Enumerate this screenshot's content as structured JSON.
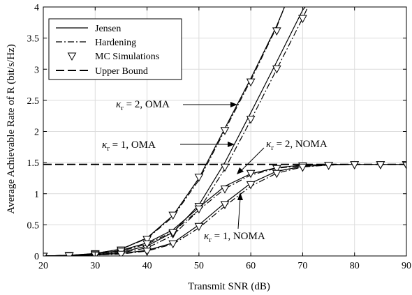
{
  "chart_data": {
    "type": "line",
    "xlabel": "Transmit SNR (dB)",
    "ylabel": "Average Achievable Rate of R (bit/s/Hz)",
    "xlim": [
      20,
      90
    ],
    "ylim": [
      0,
      4
    ],
    "xticks": [
      20,
      30,
      40,
      50,
      60,
      70,
      80,
      90
    ],
    "yticks": [
      0,
      0.5,
      1,
      1.5,
      2,
      2.5,
      3,
      3.5,
      4
    ],
    "grid": true,
    "legend": {
      "placement": "top-left",
      "entries": [
        {
          "label": "Jensen",
          "style": "solid"
        },
        {
          "label": "Hardening",
          "style": "dashdot"
        },
        {
          "label": "MC Simulations",
          "style": "triangle-marker"
        },
        {
          "label": "Upper Bound",
          "style": "dashed"
        }
      ]
    },
    "upper_bound": 1.47,
    "series": [
      {
        "kappa": "2",
        "scheme": "OMA",
        "jensen": [
          [
            20,
            0
          ],
          [
            25,
            0.01
          ],
          [
            30,
            0.04
          ],
          [
            35,
            0.11
          ],
          [
            40,
            0.29
          ],
          [
            45,
            0.65
          ],
          [
            50,
            1.25
          ],
          [
            55,
            2.05
          ],
          [
            60,
            2.85
          ],
          [
            65,
            3.7
          ],
          [
            66.5,
            4.0
          ]
        ],
        "hardening": [
          [
            20,
            0
          ],
          [
            25,
            0.01
          ],
          [
            30,
            0.04
          ],
          [
            35,
            0.11
          ],
          [
            40,
            0.28
          ],
          [
            45,
            0.63
          ],
          [
            50,
            1.22
          ],
          [
            55,
            2.02
          ],
          [
            60,
            2.82
          ],
          [
            65,
            3.68
          ],
          [
            66.5,
            4.0
          ]
        ],
        "mc": [
          [
            20,
            0
          ],
          [
            25,
            0.01
          ],
          [
            30,
            0.04
          ],
          [
            35,
            0.1
          ],
          [
            40,
            0.27
          ],
          [
            45,
            0.66
          ],
          [
            50,
            1.27
          ],
          [
            55,
            2.02
          ],
          [
            60,
            2.8
          ],
          [
            65,
            3.62
          ]
        ]
      },
      {
        "kappa": "1",
        "scheme": "OMA",
        "jensen": [
          [
            20,
            0
          ],
          [
            25,
            0.005
          ],
          [
            30,
            0.02
          ],
          [
            35,
            0.06
          ],
          [
            40,
            0.16
          ],
          [
            45,
            0.38
          ],
          [
            50,
            0.82
          ],
          [
            55,
            1.5
          ],
          [
            60,
            2.3
          ],
          [
            65,
            3.12
          ],
          [
            70,
            3.95
          ],
          [
            70.5,
            4.0
          ]
        ],
        "hardening": [
          [
            20,
            0
          ],
          [
            25,
            0.005
          ],
          [
            30,
            0.02
          ],
          [
            35,
            0.05
          ],
          [
            40,
            0.13
          ],
          [
            45,
            0.33
          ],
          [
            50,
            0.74
          ],
          [
            55,
            1.4
          ],
          [
            60,
            2.18
          ],
          [
            65,
            3.0
          ],
          [
            70,
            3.82
          ],
          [
            71,
            4.0
          ]
        ],
        "mc": [
          [
            20,
            0
          ],
          [
            25,
            0.005
          ],
          [
            30,
            0.02
          ],
          [
            35,
            0.05
          ],
          [
            40,
            0.12
          ],
          [
            45,
            0.36
          ],
          [
            50,
            0.8
          ],
          [
            55,
            1.43
          ],
          [
            60,
            2.2
          ],
          [
            65,
            3.01
          ],
          [
            70,
            3.82
          ]
        ]
      },
      {
        "kappa": "2",
        "scheme": "NOMA",
        "jensen": [
          [
            20,
            0
          ],
          [
            25,
            0.01
          ],
          [
            30,
            0.03
          ],
          [
            35,
            0.09
          ],
          [
            40,
            0.21
          ],
          [
            45,
            0.42
          ],
          [
            50,
            0.78
          ],
          [
            55,
            1.12
          ],
          [
            60,
            1.32
          ],
          [
            65,
            1.42
          ],
          [
            70,
            1.46
          ],
          [
            75,
            1.47
          ],
          [
            80,
            1.47
          ],
          [
            85,
            1.47
          ],
          [
            90,
            1.47
          ]
        ],
        "hardening": [
          [
            20,
            0
          ],
          [
            25,
            0.01
          ],
          [
            30,
            0.03
          ],
          [
            35,
            0.08
          ],
          [
            40,
            0.19
          ],
          [
            45,
            0.39
          ],
          [
            50,
            0.74
          ],
          [
            55,
            1.08
          ],
          [
            60,
            1.3
          ],
          [
            65,
            1.41
          ],
          [
            70,
            1.45
          ],
          [
            75,
            1.47
          ],
          [
            80,
            1.47
          ],
          [
            85,
            1.47
          ],
          [
            90,
            1.47
          ]
        ],
        "mc": [
          [
            20,
            0
          ],
          [
            25,
            0.01
          ],
          [
            30,
            0.03
          ],
          [
            35,
            0.08
          ],
          [
            40,
            0.2
          ],
          [
            45,
            0.38
          ],
          [
            50,
            0.76
          ],
          [
            55,
            1.08
          ],
          [
            60,
            1.33
          ],
          [
            65,
            1.41
          ],
          [
            70,
            1.45
          ],
          [
            75,
            1.46
          ],
          [
            80,
            1.47
          ],
          [
            85,
            1.47
          ],
          [
            90,
            1.47
          ]
        ]
      },
      {
        "kappa": "1",
        "scheme": "NOMA",
        "jensen": [
          [
            20,
            0
          ],
          [
            25,
            0.005
          ],
          [
            30,
            0.015
          ],
          [
            35,
            0.04
          ],
          [
            40,
            0.09
          ],
          [
            45,
            0.21
          ],
          [
            50,
            0.5
          ],
          [
            55,
            0.85
          ],
          [
            60,
            1.17
          ],
          [
            65,
            1.36
          ],
          [
            70,
            1.44
          ],
          [
            75,
            1.46
          ],
          [
            80,
            1.47
          ],
          [
            85,
            1.47
          ],
          [
            90,
            1.47
          ]
        ],
        "hardening": [
          [
            20,
            0
          ],
          [
            25,
            0.005
          ],
          [
            30,
            0.015
          ],
          [
            35,
            0.03
          ],
          [
            40,
            0.08
          ],
          [
            45,
            0.19
          ],
          [
            50,
            0.45
          ],
          [
            55,
            0.8
          ],
          [
            60,
            1.12
          ],
          [
            65,
            1.33
          ],
          [
            70,
            1.43
          ],
          [
            75,
            1.46
          ],
          [
            80,
            1.47
          ],
          [
            85,
            1.47
          ],
          [
            90,
            1.47
          ]
        ],
        "mc": [
          [
            20,
            0
          ],
          [
            25,
            0.005
          ],
          [
            30,
            0.015
          ],
          [
            35,
            0.03
          ],
          [
            40,
            0.08
          ],
          [
            45,
            0.2
          ],
          [
            50,
            0.48
          ],
          [
            55,
            0.83
          ],
          [
            60,
            1.15
          ],
          [
            65,
            1.33
          ],
          [
            70,
            1.43
          ],
          [
            75,
            1.46
          ],
          [
            80,
            1.47
          ],
          [
            85,
            1.47
          ],
          [
            90,
            1.47
          ]
        ]
      }
    ],
    "annotations": [
      {
        "name": "kr2-oma",
        "kappa_sub": "r",
        "rest": " = 2, OMA"
      },
      {
        "name": "kr1-oma",
        "kappa_sub": "r",
        "rest": " = 1, OMA"
      },
      {
        "name": "kr2-noma",
        "kappa_sub": "r",
        "rest": " = 2, NOMA"
      },
      {
        "name": "kr1-noma",
        "kappa_sub": "r",
        "rest": " = 1, NOMA"
      }
    ]
  }
}
